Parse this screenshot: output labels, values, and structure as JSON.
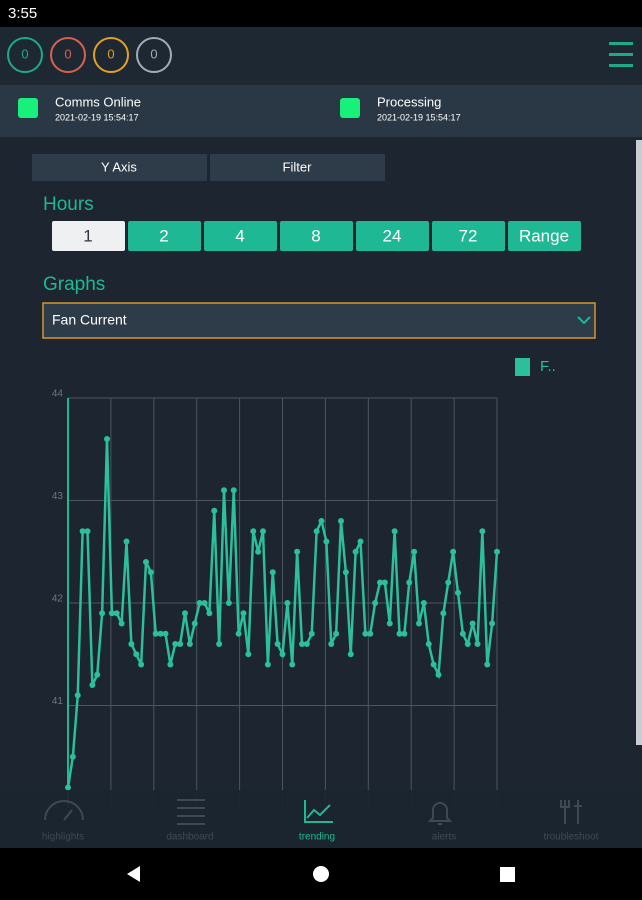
{
  "status_bar": {
    "time": "3:55"
  },
  "counters": [
    {
      "value": "0",
      "color": "#1fa98b"
    },
    {
      "value": "0",
      "color": "#d9604e"
    },
    {
      "value": "0",
      "color": "#e0a024"
    },
    {
      "value": "0",
      "color": "#a3abb3"
    }
  ],
  "status": [
    {
      "label": "Comms Online",
      "time": "2021-02-19 15:54:17"
    },
    {
      "label": "Processing",
      "time": "2021-02-19 15:54:17"
    }
  ],
  "tabs": [
    "Y Axis",
    "Filter"
  ],
  "hours": {
    "title": "Hours",
    "options": [
      "1",
      "2",
      "4",
      "8",
      "24",
      "72",
      "Range"
    ],
    "selected": 0
  },
  "graphs": {
    "title": "Graphs",
    "selected": "Fan Current"
  },
  "chart_data": {
    "type": "line",
    "series": [
      {
        "name": "F..",
        "color": "#2bbf9a",
        "values": [
          40.2,
          40.5,
          41.1,
          42.7,
          42.7,
          41.2,
          41.3,
          41.9,
          43.6,
          41.9,
          41.9,
          41.8,
          42.6,
          41.6,
          41.5,
          41.4,
          42.4,
          42.3,
          41.7,
          41.7,
          41.7,
          41.4,
          41.6,
          41.6,
          41.9,
          41.6,
          41.8,
          42.0,
          42.0,
          41.9,
          42.9,
          41.6,
          43.1,
          42.0,
          43.1,
          41.7,
          41.9,
          41.5,
          42.7,
          42.5,
          42.7,
          41.4,
          42.3,
          41.6,
          41.5,
          42.0,
          41.4,
          42.5,
          41.6,
          41.6,
          41.7,
          42.7,
          42.8,
          42.6,
          41.6,
          41.7,
          42.8,
          42.3,
          41.5,
          42.5,
          42.6,
          41.7,
          41.7,
          42.0,
          42.2,
          42.2,
          41.8,
          42.7,
          41.7,
          41.7,
          42.2,
          42.5,
          41.8,
          42.0,
          41.6,
          41.4,
          41.3,
          41.9,
          42.2,
          42.5,
          42.1,
          41.7,
          41.6,
          41.8,
          41.6,
          42.7,
          41.4,
          41.8,
          42.5
        ]
      }
    ],
    "ylim": [
      40,
      44
    ],
    "yticks": [
      41,
      42,
      43,
      44
    ],
    "grid": true
  },
  "nav": {
    "items": [
      "highlights",
      "dashboard",
      "trending",
      "alerts",
      "troubleshoot"
    ],
    "selected": 2
  }
}
